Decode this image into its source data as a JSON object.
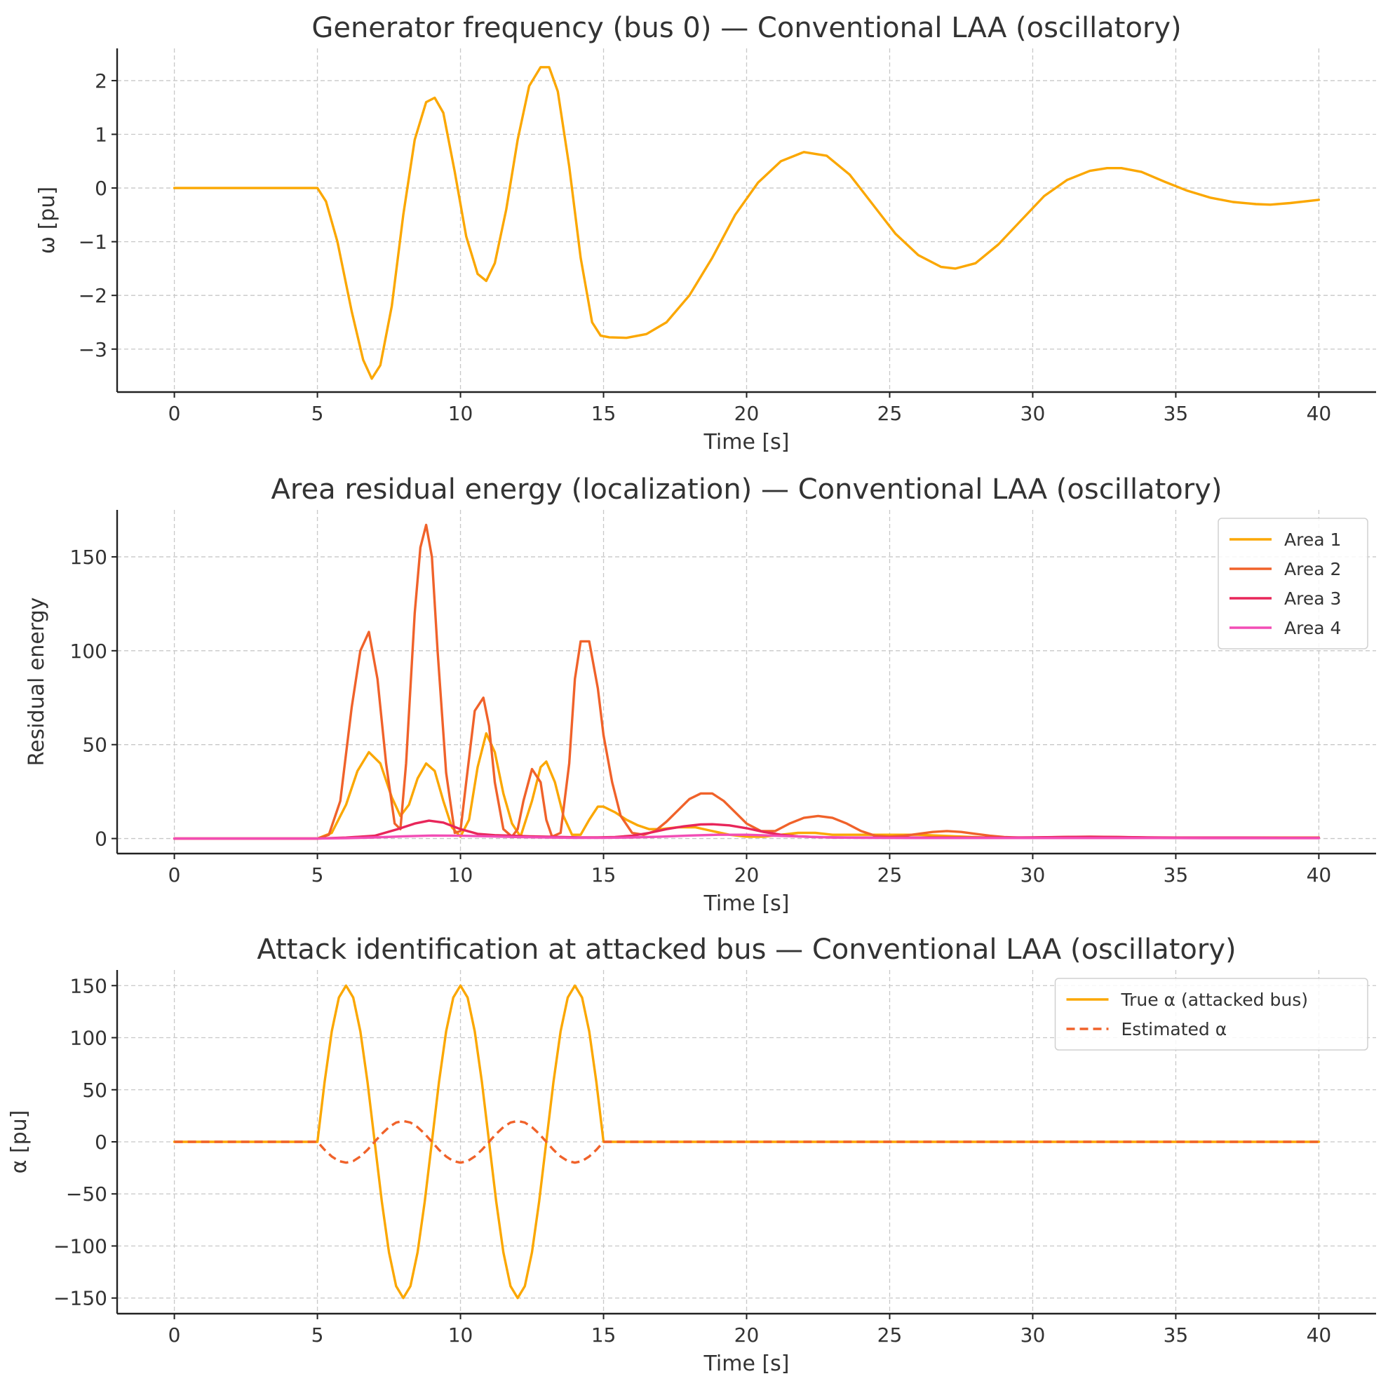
{
  "colors": {
    "area1": "#FBA700",
    "area2": "#F0622A",
    "area3": "#E8265A",
    "area4": "#F24DB5"
  },
  "chart_data": [
    {
      "type": "line",
      "title": "Generator frequency (bus 0) — Conventional LAA (oscillatory)",
      "xlabel": "Time [s]",
      "ylabel": "ω [pu]",
      "xlim": [
        -2,
        42
      ],
      "ylim": [
        -3.8,
        2.6
      ],
      "xticks": [
        0,
        5,
        10,
        15,
        20,
        25,
        30,
        35,
        40
      ],
      "yticks": [
        -3,
        -2,
        -1,
        0,
        1,
        2
      ],
      "grid": true,
      "legend": null,
      "series": [
        {
          "color": "#FBA700",
          "dash": false,
          "x": [
            0,
            5,
            5.3,
            5.7,
            6.2,
            6.6,
            6.9,
            7.2,
            7.6,
            8.0,
            8.4,
            8.8,
            9.1,
            9.4,
            9.8,
            10.2,
            10.6,
            10.9,
            11.2,
            11.6,
            12.0,
            12.4,
            12.8,
            13.1,
            13.4,
            13.8,
            14.2,
            14.6,
            14.9,
            15.2,
            15.8,
            16.5,
            17.2,
            18.0,
            18.8,
            19.6,
            20.4,
            21.2,
            22.0,
            22.8,
            23.6,
            24.4,
            25.2,
            26.0,
            26.8,
            27.3,
            28.0,
            28.8,
            29.6,
            30.4,
            31.2,
            32.0,
            32.6,
            33.1,
            33.8,
            34.6,
            35.4,
            36.2,
            37.0,
            37.8,
            38.3,
            39.0,
            40.0
          ],
          "y": [
            0,
            0,
            -0.25,
            -1.0,
            -2.3,
            -3.2,
            -3.55,
            -3.3,
            -2.2,
            -0.5,
            0.9,
            1.6,
            1.68,
            1.4,
            0.3,
            -0.9,
            -1.6,
            -1.73,
            -1.4,
            -0.4,
            0.9,
            1.9,
            2.25,
            2.25,
            1.8,
            0.4,
            -1.3,
            -2.5,
            -2.75,
            -2.78,
            -2.79,
            -2.72,
            -2.5,
            -2.0,
            -1.3,
            -0.5,
            0.1,
            0.5,
            0.67,
            0.6,
            0.25,
            -0.3,
            -0.85,
            -1.25,
            -1.47,
            -1.5,
            -1.4,
            -1.05,
            -0.6,
            -0.15,
            0.15,
            0.32,
            0.37,
            0.37,
            0.3,
            0.12,
            -0.05,
            -0.18,
            -0.26,
            -0.3,
            -0.31,
            -0.28,
            -0.22
          ]
        }
      ]
    },
    {
      "type": "line",
      "title": "Area residual energy (localization) — Conventional LAA (oscillatory)",
      "xlabel": "Time [s]",
      "ylabel": "Residual energy",
      "xlim": [
        -2,
        42
      ],
      "ylim": [
        -8,
        175
      ],
      "xticks": [
        0,
        5,
        10,
        15,
        20,
        25,
        30,
        35,
        40
      ],
      "yticks": [
        0,
        50,
        100,
        150
      ],
      "grid": true,
      "legend": "top-right",
      "series": [
        {
          "name": "Area 1",
          "color": "#FBA700",
          "dash": false,
          "x": [
            0,
            5,
            5.5,
            6.0,
            6.4,
            6.8,
            7.2,
            7.6,
            7.9,
            8.2,
            8.5,
            8.8,
            9.1,
            9.4,
            9.7,
            10.0,
            10.3,
            10.6,
            10.9,
            11.2,
            11.5,
            11.8,
            12.1,
            12.5,
            12.8,
            13.0,
            13.3,
            13.6,
            13.9,
            14.2,
            14.5,
            14.8,
            15.0,
            15.4,
            15.8,
            16.2,
            16.6,
            17.0,
            17.6,
            18.2,
            18.8,
            19.4,
            20.0,
            20.6,
            21.2,
            21.8,
            22.4,
            23.0,
            23.6,
            24.2,
            24.8,
            25.4,
            26.0,
            26.8,
            27.6,
            28.4,
            29.2,
            30.0,
            31.0,
            32.0,
            33.0,
            34.0,
            35.0,
            36.0,
            37.0,
            38.0,
            39.0,
            40.0
          ],
          "y": [
            0,
            0,
            3,
            18,
            36,
            46,
            40,
            22,
            12,
            18,
            32,
            40,
            36,
            20,
            6,
            1,
            10,
            38,
            56,
            46,
            24,
            8,
            1,
            20,
            38,
            41,
            30,
            12,
            2,
            2,
            10,
            17,
            17,
            14,
            10,
            7,
            5,
            5,
            6,
            6,
            4,
            2,
            1,
            1,
            2,
            3,
            3,
            2,
            2,
            2,
            2,
            2,
            2,
            1.5,
            1,
            0.5,
            0.5,
            0.3,
            0.3,
            0.3,
            0.3,
            0.3,
            0.3,
            0.3,
            0.3,
            0.3,
            0.3,
            0.3
          ]
        },
        {
          "name": "Area 2",
          "color": "#F0622A",
          "dash": false,
          "x": [
            0,
            5,
            5.4,
            5.8,
            6.2,
            6.5,
            6.8,
            7.1,
            7.4,
            7.7,
            7.9,
            8.1,
            8.4,
            8.6,
            8.8,
            9.0,
            9.2,
            9.5,
            9.8,
            10.0,
            10.2,
            10.5,
            10.8,
            11.0,
            11.2,
            11.5,
            11.8,
            12.0,
            12.2,
            12.5,
            12.8,
            13.0,
            13.2,
            13.5,
            13.8,
            14.0,
            14.2,
            14.5,
            14.8,
            15.0,
            15.3,
            15.6,
            16.0,
            16.4,
            16.8,
            17.2,
            17.6,
            18.0,
            18.4,
            18.8,
            19.2,
            19.6,
            20.0,
            20.5,
            21.0,
            21.5,
            22.0,
            22.5,
            23.0,
            23.5,
            24.0,
            24.5,
            25.0,
            25.5,
            26.0,
            26.5,
            27.0,
            27.5,
            28.0,
            28.5,
            29.0,
            29.5,
            30.0,
            31.0,
            32.0,
            33.0,
            34.0,
            35.0,
            36.0,
            37.0,
            38.0,
            39.0,
            40.0
          ],
          "y": [
            0,
            0,
            2,
            20,
            70,
            100,
            110,
            85,
            40,
            8,
            5,
            40,
            120,
            155,
            167,
            150,
            100,
            35,
            3,
            4,
            30,
            68,
            75,
            60,
            30,
            5,
            1,
            5,
            20,
            37,
            30,
            10,
            1,
            3,
            40,
            85,
            105,
            105,
            80,
            55,
            30,
            12,
            3,
            2,
            4,
            9,
            15,
            21,
            24,
            24,
            20,
            14,
            8,
            4,
            4,
            8,
            11,
            12,
            11,
            8,
            4,
            1.5,
            1,
            1.5,
            2.5,
            3.5,
            4,
            3.5,
            2.5,
            1.5,
            0.8,
            0.5,
            0.5,
            0.8,
            1,
            0.8,
            0.5,
            0.5,
            0.5,
            0.5,
            0.5,
            0.5,
            0.5
          ]
        },
        {
          "name": "Area 3",
          "color": "#E8265A",
          "dash": false,
          "x": [
            0,
            5,
            6,
            7,
            7.8,
            8.4,
            8.9,
            9.4,
            10.0,
            10.6,
            11.2,
            11.8,
            12.4,
            13.0,
            13.6,
            14.2,
            14.8,
            15.4,
            16.0,
            16.6,
            17.2,
            17.8,
            18.4,
            18.8,
            19.4,
            20.0,
            20.6,
            21.2,
            21.8,
            22.4,
            23.0,
            24.0,
            25.0,
            26.0,
            27.0,
            28.0,
            29.0,
            30.0,
            31.0,
            32.0,
            33.0,
            34.0,
            35.0,
            36.0,
            37.0,
            38.0,
            39.0,
            40.0
          ],
          "y": [
            0,
            0,
            0.5,
            1.5,
            5,
            8,
            9.5,
            8.5,
            5,
            2.5,
            1.8,
            1.5,
            1.2,
            1,
            0.8,
            0.6,
            0.6,
            0.8,
            1.5,
            3,
            5,
            6.5,
            7.5,
            7.6,
            7,
            5.5,
            3.5,
            2,
            1.2,
            0.8,
            0.6,
            0.5,
            0.5,
            0.5,
            0.5,
            0.5,
            0.5,
            0.6,
            0.8,
            0.9,
            0.8,
            0.6,
            0.5,
            0.5,
            0.5,
            0.4,
            0.3,
            0.3
          ]
        },
        {
          "name": "Area 4",
          "color": "#F24DB5",
          "dash": false,
          "x": [
            0,
            5,
            6,
            7,
            8,
            9,
            10,
            11,
            12,
            13,
            14,
            15,
            16,
            17,
            18,
            19,
            20,
            21,
            22,
            23,
            24,
            26,
            28,
            30,
            32,
            34,
            36,
            38,
            40
          ],
          "y": [
            0,
            0,
            0.2,
            0.6,
            1.2,
            1.6,
            1.5,
            1.2,
            0.8,
            0.6,
            0.4,
            0.4,
            0.6,
            1,
            1.6,
            2,
            2,
            1.5,
            1,
            0.6,
            0.4,
            0.3,
            0.3,
            0.3,
            0.3,
            0.3,
            0.2,
            0.2,
            0.2
          ]
        }
      ]
    },
    {
      "type": "line",
      "title": "Attack identification at attacked bus — Conventional LAA (oscillatory)",
      "xlabel": "Time [s]",
      "ylabel": "α [pu]",
      "xlim": [
        -2,
        42
      ],
      "ylim": [
        -165,
        165
      ],
      "xticks": [
        0,
        5,
        10,
        15,
        20,
        25,
        30,
        35,
        40
      ],
      "yticks": [
        -150,
        -100,
        -50,
        0,
        50,
        100,
        150
      ],
      "grid": true,
      "legend": "top-right",
      "series": [
        {
          "name": "True α (attacked bus)",
          "color": "#FBA700",
          "dash": false,
          "x": [
            0,
            5,
            5.25,
            5.5,
            5.75,
            6.0,
            6.25,
            6.5,
            6.75,
            7.0,
            7.25,
            7.5,
            7.75,
            8.0,
            8.25,
            8.5,
            8.75,
            9.0,
            9.25,
            9.5,
            9.75,
            10.0,
            10.25,
            10.5,
            10.75,
            11.0,
            11.25,
            11.5,
            11.75,
            12.0,
            12.25,
            12.5,
            12.75,
            13.0,
            13.25,
            13.5,
            13.75,
            14.0,
            14.25,
            14.5,
            14.75,
            15.0,
            40
          ],
          "y": [
            0,
            0,
            57.4,
            106.1,
            138.6,
            150,
            138.6,
            106.1,
            57.4,
            0,
            -57.4,
            -106.1,
            -138.6,
            -150,
            -138.6,
            -106.1,
            -57.4,
            0,
            57.4,
            106.1,
            138.6,
            150,
            138.6,
            106.1,
            57.4,
            0,
            -57.4,
            -106.1,
            -138.6,
            -150,
            -138.6,
            -106.1,
            -57.4,
            0,
            57.4,
            106.1,
            138.6,
            150,
            138.6,
            106.1,
            57.4,
            0,
            0
          ]
        },
        {
          "name": "Estimated α",
          "color": "#F0622A",
          "dash": true,
          "x": [
            0,
            5,
            5.25,
            5.5,
            5.75,
            6.0,
            6.25,
            6.5,
            6.75,
            7.0,
            7.25,
            7.5,
            7.75,
            8.0,
            8.25,
            8.5,
            8.75,
            9.0,
            9.25,
            9.5,
            9.75,
            10.0,
            10.25,
            10.5,
            10.75,
            11.0,
            11.25,
            11.5,
            11.75,
            12.0,
            12.25,
            12.5,
            12.75,
            13.0,
            13.25,
            13.5,
            13.75,
            14.0,
            14.25,
            14.5,
            14.75,
            15.0,
            40
          ],
          "y": [
            0,
            0,
            -7.7,
            -14.1,
            -18.5,
            -20,
            -18.5,
            -14.1,
            -7.7,
            0,
            7.7,
            14.1,
            18.5,
            20,
            18.5,
            14.1,
            7.7,
            0,
            -7.7,
            -14.1,
            -18.5,
            -20,
            -18.5,
            -14.1,
            -7.7,
            0,
            7.7,
            14.1,
            18.5,
            20,
            18.5,
            14.1,
            7.7,
            0,
            -7.7,
            -14.1,
            -18.5,
            -20,
            -18.5,
            -14.1,
            -7.7,
            0,
            0
          ]
        }
      ]
    }
  ]
}
